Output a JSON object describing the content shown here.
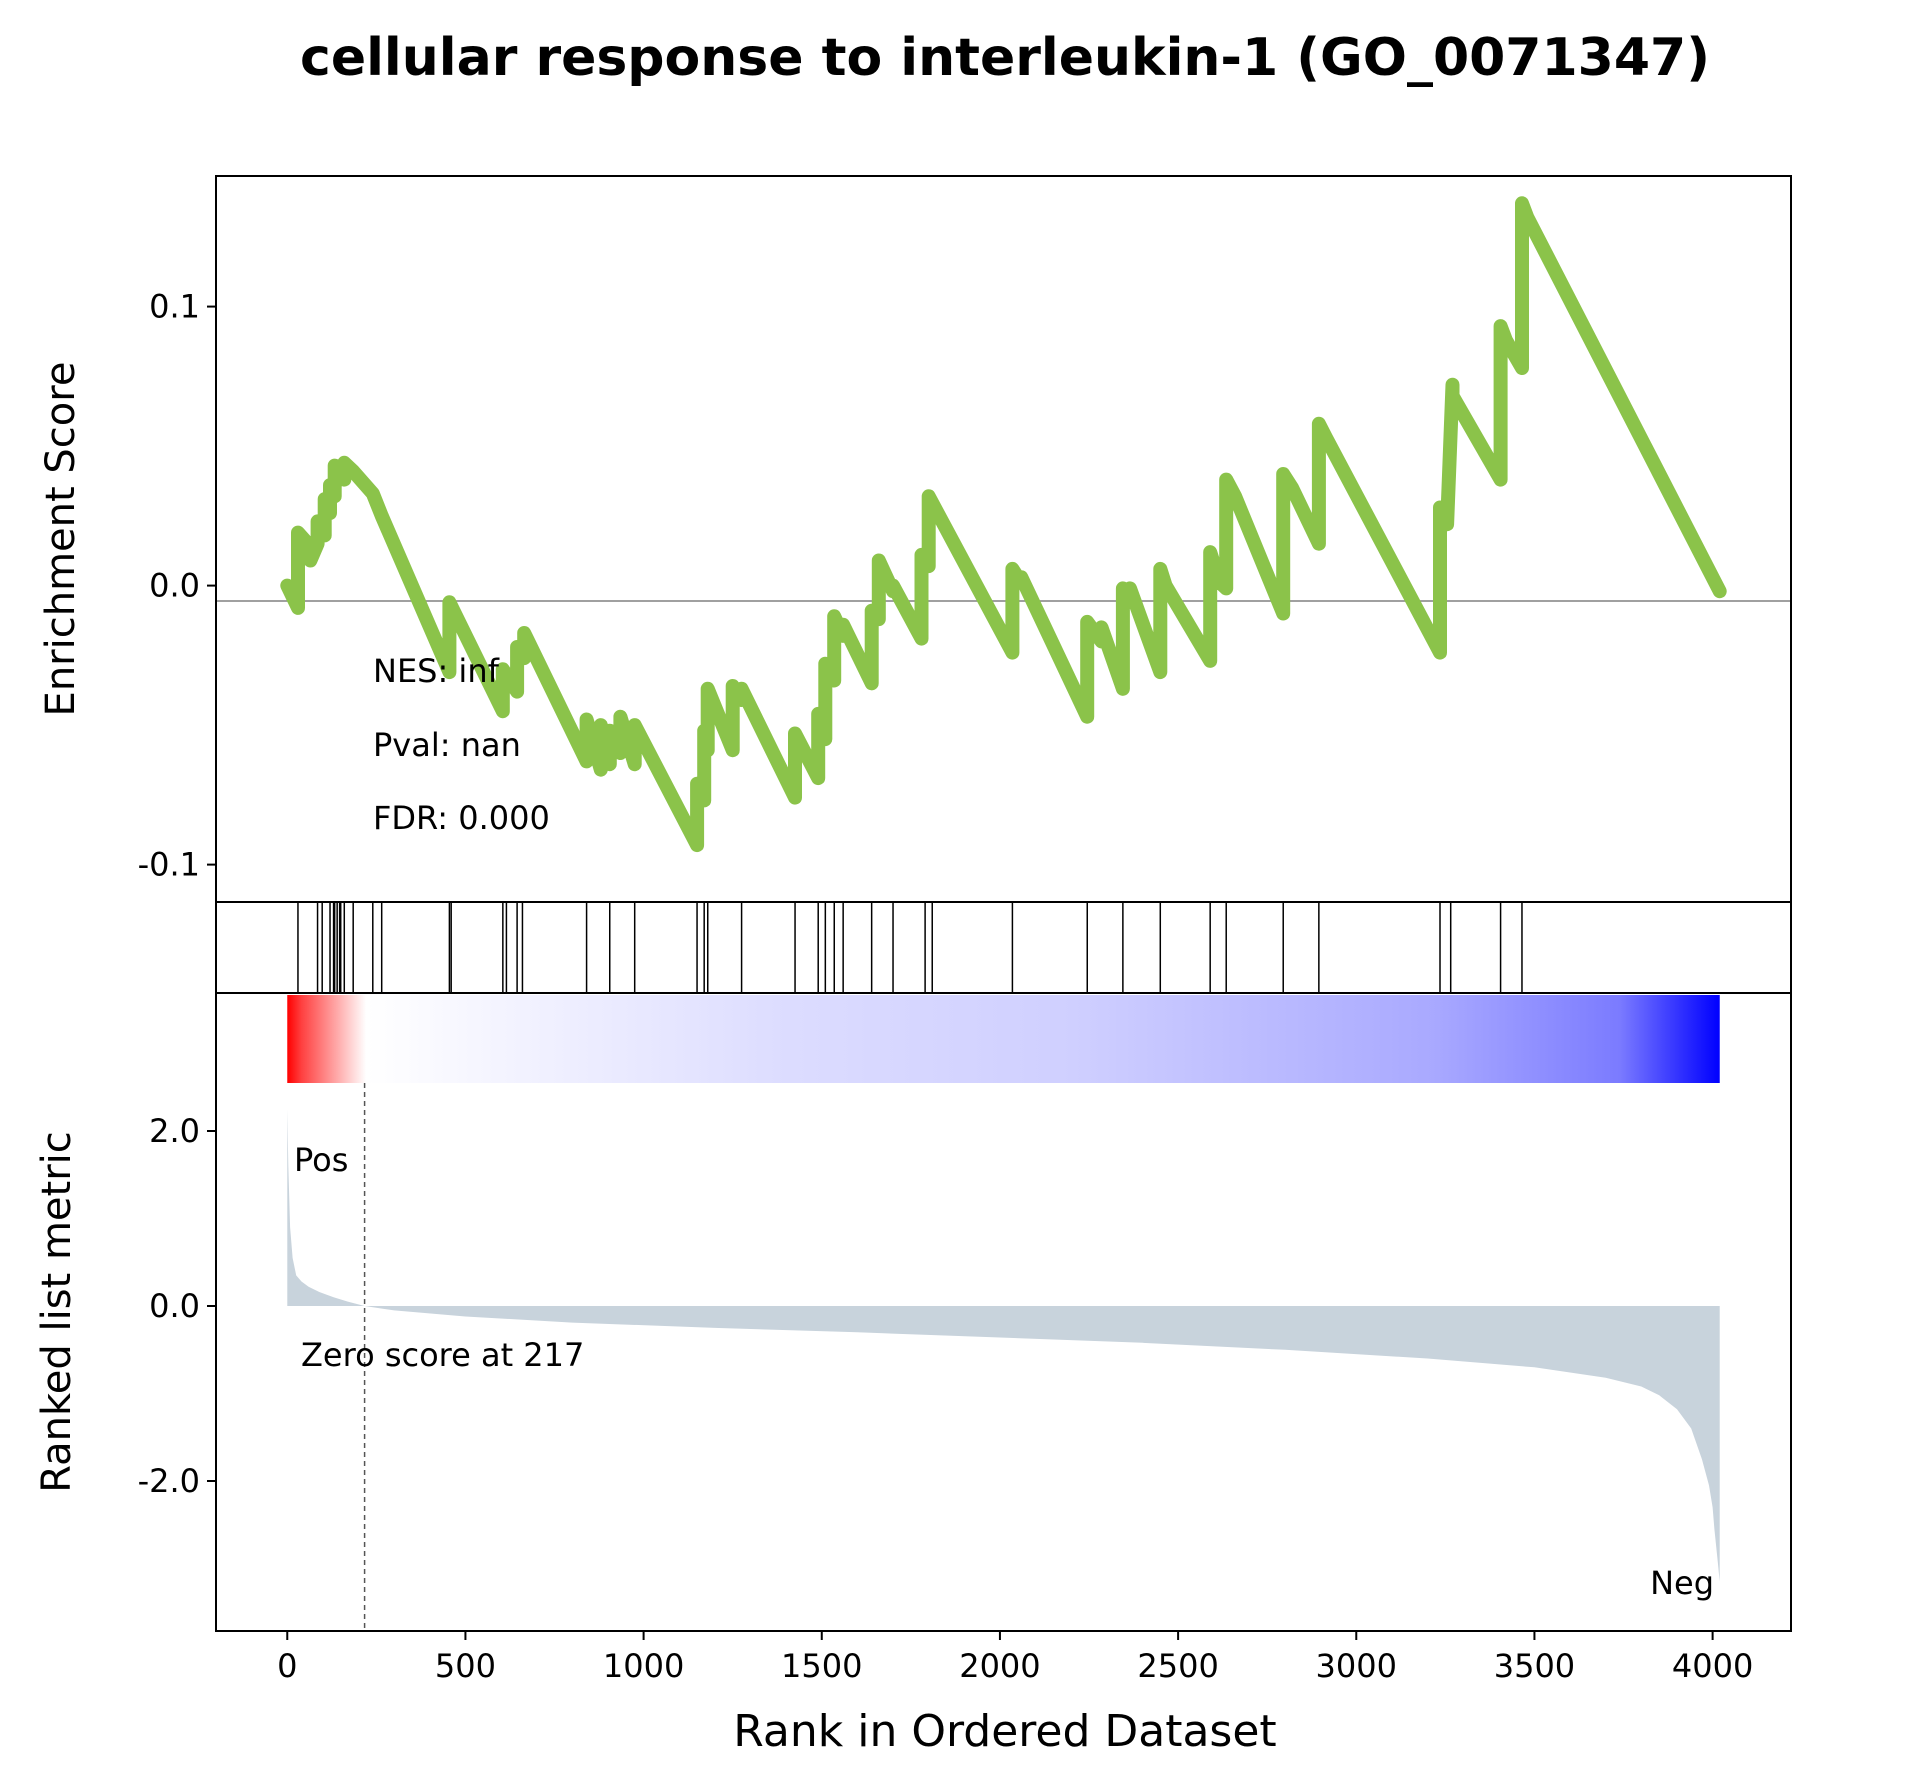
{
  "title": "cellular response to interleukin-1 (GO_0071347)",
  "chart_data": [
    {
      "type": "line",
      "ylabel": "Enrichment Score",
      "ylim": [
        -0.1,
        0.15
      ],
      "yticks": [
        0.1,
        0.0,
        -0.1
      ],
      "ytick_labels": [
        "0.1",
        "0.0",
        "-0.1"
      ],
      "zero_line": true,
      "line_color": "#8bc34a",
      "annotations": [
        "NES: inf",
        "Pval: nan",
        "FDR: 0.000"
      ],
      "series": [
        {
          "x": [
            0,
            30,
            30,
            65,
            65,
            85,
            85,
            105,
            105,
            120,
            120,
            133,
            133,
            160,
            160,
            185,
            240,
            265,
            455,
            455,
            605,
            605,
            645,
            645,
            665,
            665,
            840,
            840,
            880,
            880,
            905,
            905,
            935,
            935,
            975,
            975,
            1150,
            1150,
            1170,
            1170,
            1180,
            1180,
            1250,
            1250,
            1275,
            1275,
            1425,
            1425,
            1490,
            1490,
            1510,
            1510,
            1535,
            1535,
            1560,
            1560,
            1640,
            1640,
            1660,
            1660,
            1700,
            1700,
            1780,
            1780,
            1800,
            1800,
            2035,
            2035,
            2060,
            2060,
            2245,
            2245,
            2285,
            2285,
            2345,
            2345,
            2365,
            2365,
            2450,
            2450,
            2465,
            2465,
            2590,
            2590,
            2610,
            2610,
            2635,
            2635,
            2660,
            2660,
            2795,
            2795,
            2820,
            2820,
            2895,
            2895,
            2915,
            2915,
            3235,
            3235,
            3255,
            3255,
            3270,
            3270,
            3405,
            3405,
            3420,
            3420,
            3465,
            3465,
            3480,
            3480,
            4020
          ],
          "y": [
            0,
            -0.008,
            0.019,
            0.014,
            0.009,
            0.015,
            0.023,
            0.018,
            0.031,
            0.026,
            0.036,
            0.032,
            0.043,
            0.038,
            0.044,
            0.041,
            0.033,
            0.025,
            -0.031,
            -0.006,
            -0.045,
            -0.03,
            -0.038,
            -0.022,
            -0.026,
            -0.017,
            -0.063,
            -0.048,
            -0.066,
            -0.05,
            -0.064,
            -0.052,
            -0.06,
            -0.047,
            -0.064,
            -0.05,
            -0.093,
            -0.071,
            -0.077,
            -0.052,
            -0.059,
            -0.037,
            -0.059,
            -0.036,
            -0.041,
            -0.037,
            -0.076,
            -0.053,
            -0.069,
            -0.046,
            -0.055,
            -0.028,
            -0.034,
            -0.011,
            -0.018,
            -0.014,
            -0.035,
            -0.009,
            -0.012,
            0.009,
            -0.002,
            0.0,
            -0.019,
            0.011,
            0.007,
            0.032,
            -0.024,
            0.006,
            0.001,
            0.003,
            -0.047,
            -0.013,
            -0.02,
            -0.015,
            -0.037,
            -0.001,
            -0.003,
            -0.001,
            -0.031,
            0.006,
            0.0,
            0.0,
            -0.027,
            0.012,
            0.004,
            0.002,
            -0.001,
            0.038,
            0.032,
            0.032,
            -0.01,
            0.04,
            0.035,
            0.035,
            0.015,
            0.058,
            0.053,
            0.053,
            -0.024,
            0.028,
            0.022,
            0.022,
            0.072,
            0.068,
            0.038,
            0.093,
            0.088,
            0.088,
            0.078,
            0.137,
            0.132,
            0.132,
            -0.002
          ]
        }
      ]
    },
    {
      "type": "hits",
      "positions": [
        30,
        85,
        98,
        120,
        130,
        133,
        140,
        147,
        150,
        160,
        185,
        240,
        265,
        455,
        460,
        605,
        615,
        645,
        660,
        840,
        905,
        975,
        1150,
        1170,
        1180,
        1275,
        1425,
        1490,
        1510,
        1535,
        1560,
        1640,
        1700,
        1790,
        1810,
        2035,
        2245,
        2345,
        2450,
        2590,
        2635,
        2795,
        2895,
        3235,
        3265,
        3405,
        3465
      ]
    },
    {
      "type": "heatmap",
      "colormap": [
        "#ff0000",
        "#ffffff",
        "#0000ff"
      ],
      "xlim": [
        0,
        4020
      ]
    },
    {
      "type": "area",
      "ylabel": "Ranked list metric",
      "xlabel": "Rank in Ordered Dataset",
      "ylim": [
        -3.2,
        3.0
      ],
      "yticks": [
        2.0,
        0.0,
        -2.0
      ],
      "ytick_labels": [
        "2.0",
        "0.0",
        "-2.0"
      ],
      "xlim": [
        -200,
        4220
      ],
      "xticks": [
        0,
        500,
        1000,
        1500,
        2000,
        2500,
        3000,
        3500,
        4000
      ],
      "xtick_labels": [
        "0",
        "500",
        "1000",
        "1500",
        "2000",
        "2500",
        "3000",
        "3500",
        "4000"
      ],
      "fill_color": "#c8d3dc",
      "pos_label": "Pos",
      "pos_color": "#ff0000",
      "neg_label": "Neg",
      "neg_color": "#0000ff",
      "zero_cross_label": "Zero score at 217",
      "zero_cross_rank": 217,
      "x": [
        0,
        3,
        8,
        15,
        25,
        40,
        60,
        90,
        130,
        170,
        217,
        300,
        500,
        800,
        1200,
        1600,
        2000,
        2400,
        2800,
        3200,
        3500,
        3700,
        3800,
        3850,
        3900,
        3940,
        3970,
        3990,
        4000,
        4005,
        4010,
        4015,
        4020
      ],
      "values": [
        2.25,
        1.6,
        0.9,
        0.55,
        0.35,
        0.28,
        0.22,
        0.16,
        0.1,
        0.05,
        0.0,
        -0.05,
        -0.12,
        -0.19,
        -0.25,
        -0.3,
        -0.36,
        -0.42,
        -0.5,
        -0.6,
        -0.7,
        -0.82,
        -0.92,
        -1.02,
        -1.18,
        -1.4,
        -1.75,
        -2.05,
        -2.3,
        -2.55,
        -2.75,
        -2.95,
        -3.15
      ]
    }
  ]
}
